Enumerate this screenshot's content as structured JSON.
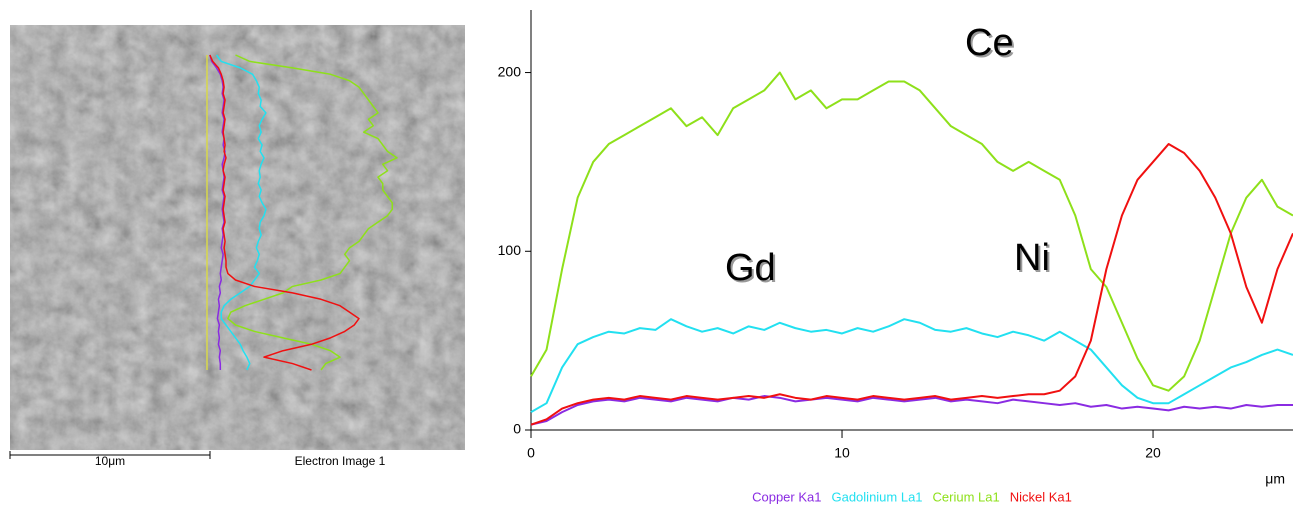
{
  "image": {
    "scale_label": "10μm",
    "caption": "Electron Image 1"
  },
  "chart_data": {
    "type": "line",
    "xlabel": "μm",
    "annotations": [
      "Ce",
      "Gd",
      "Ni"
    ],
    "x": [
      0,
      0.5,
      1,
      1.5,
      2,
      2.5,
      3,
      3.5,
      4,
      4.5,
      5,
      5.5,
      6,
      6.5,
      7,
      7.5,
      8,
      8.5,
      9,
      9.5,
      10,
      10.5,
      11,
      11.5,
      12,
      12.5,
      13,
      13.5,
      14,
      14.5,
      15,
      15.5,
      16,
      16.5,
      17,
      17.5,
      18,
      18.5,
      19,
      19.5,
      20,
      20.5,
      21,
      21.5,
      22,
      22.5,
      23,
      23.5,
      24,
      24.5
    ],
    "series": [
      {
        "name": "Copper Ka1",
        "color": "#8a2be2",
        "values": [
          3,
          5,
          10,
          14,
          16,
          17,
          16,
          18,
          17,
          16,
          18,
          17,
          16,
          18,
          17,
          19,
          18,
          16,
          17,
          18,
          17,
          16,
          18,
          17,
          16,
          17,
          18,
          16,
          17,
          16,
          15,
          17,
          16,
          15,
          14,
          15,
          13,
          14,
          12,
          13,
          12,
          11,
          13,
          12,
          13,
          12,
          14,
          13,
          14,
          14
        ]
      },
      {
        "name": "Gadolinium La1",
        "color": "#22e0f0",
        "values": [
          10,
          15,
          35,
          48,
          52,
          55,
          54,
          57,
          56,
          62,
          58,
          55,
          57,
          54,
          58,
          56,
          60,
          57,
          55,
          56,
          54,
          57,
          55,
          58,
          62,
          60,
          56,
          55,
          57,
          54,
          52,
          55,
          53,
          50,
          55,
          50,
          45,
          35,
          25,
          18,
          15,
          15,
          20,
          25,
          30,
          35,
          38,
          42,
          45,
          42
        ]
      },
      {
        "name": "Cerium La1",
        "color": "#8ee01a",
        "values": [
          30,
          45,
          90,
          130,
          150,
          160,
          165,
          170,
          175,
          180,
          170,
          175,
          165,
          180,
          185,
          190,
          200,
          185,
          190,
          180,
          185,
          185,
          190,
          195,
          195,
          190,
          180,
          170,
          165,
          160,
          150,
          145,
          150,
          145,
          140,
          120,
          90,
          80,
          60,
          40,
          25,
          22,
          30,
          50,
          80,
          110,
          130,
          140,
          125,
          120
        ]
      },
      {
        "name": "Nickel Ka1",
        "color": "#f01010",
        "values": [
          3,
          6,
          12,
          15,
          17,
          18,
          17,
          19,
          18,
          17,
          19,
          18,
          17,
          18,
          19,
          18,
          20,
          18,
          17,
          19,
          18,
          17,
          19,
          18,
          17,
          18,
          19,
          17,
          18,
          19,
          18,
          19,
          20,
          20,
          22,
          30,
          50,
          90,
          120,
          140,
          150,
          160,
          155,
          145,
          130,
          110,
          80,
          60,
          90,
          110
        ]
      }
    ],
    "xlim": [
      0,
      24.5
    ],
    "ylim": [
      0,
      235
    ],
    "xticks": [
      0,
      10,
      20
    ],
    "yticks": [
      0,
      100,
      200
    ]
  }
}
